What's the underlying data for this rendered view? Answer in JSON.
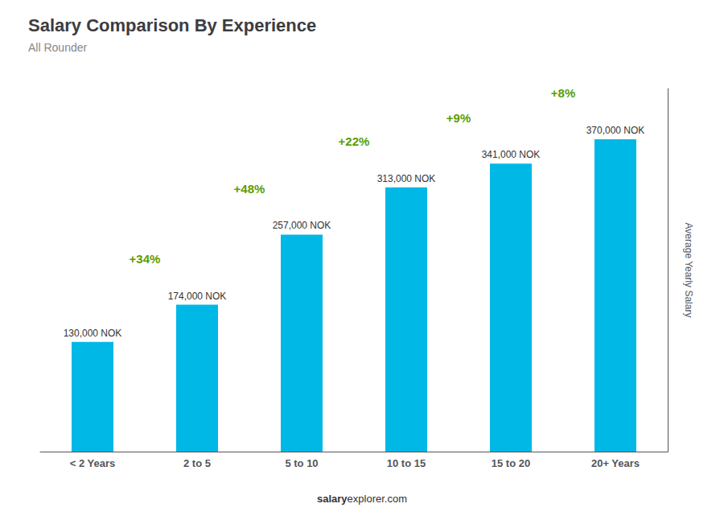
{
  "chart_data": {
    "type": "bar",
    "title": "Salary Comparison By Experience",
    "subtitle": "All Rounder",
    "categories": [
      "< 2 Years",
      "2 to 5",
      "5 to 10",
      "10 to 15",
      "15 to 20",
      "20+ Years"
    ],
    "values": [
      130000,
      174000,
      257000,
      313000,
      341000,
      370000
    ],
    "value_labels": [
      "130,000 NOK",
      "174,000 NOK",
      "257,000 NOK",
      "313,000 NOK",
      "341,000 NOK",
      "370,000 NOK"
    ],
    "data_labels": true,
    "color": "#00b8e6",
    "ylabel": "Average Yearly Salary",
    "ylim": [
      0,
      430000
    ],
    "tick_labels": "x",
    "grid": false,
    "annotations": [
      "+34%",
      "+48%",
      "+22%",
      "+9%",
      "+8%"
    ],
    "watermark": [
      "salary",
      "explorer.com"
    ]
  }
}
